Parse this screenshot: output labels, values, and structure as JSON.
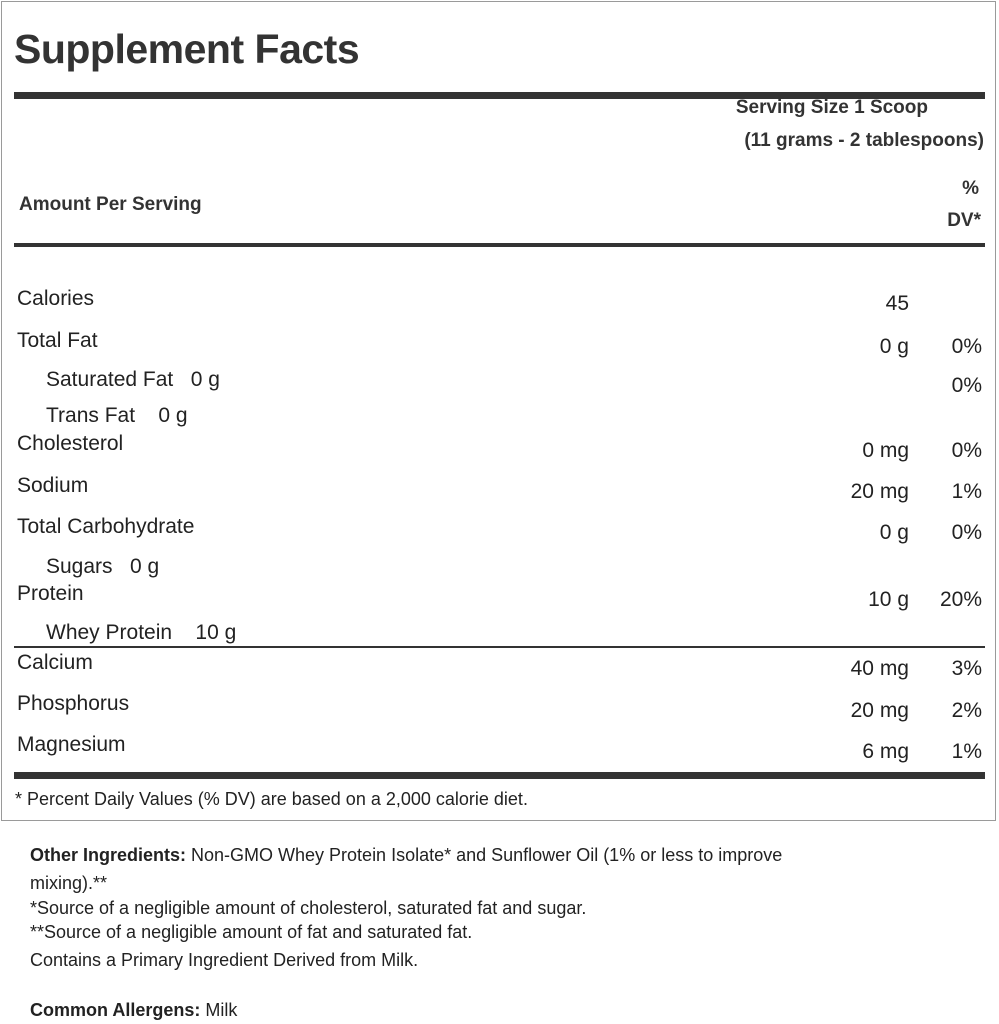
{
  "title": "Supplement Facts",
  "serving_size_line1": "Serving Size 1 Scoop",
  "serving_size_line2": "(11 grams - 2 tablespoons)",
  "amount_per_serving": "Amount Per Serving",
  "dv_header_line1": "%",
  "dv_header_line2": "DV*",
  "rows": [
    {
      "name": "Calories",
      "amount": "45",
      "dv": ""
    },
    {
      "name": "Total Fat",
      "amount": "0 g",
      "dv": "0%"
    },
    {
      "name": "Saturated Fat   0 g",
      "amount": "",
      "dv": "0%"
    },
    {
      "name": "Trans Fat    0 g",
      "amount": "",
      "dv": ""
    },
    {
      "name": "Cholesterol",
      "amount": "0 mg",
      "dv": "0%"
    },
    {
      "name": "Sodium",
      "amount": "20 mg",
      "dv": "1%"
    },
    {
      "name": "Total Carbohydrate",
      "amount": "0 g",
      "dv": "0%"
    },
    {
      "name": "Sugars   0 g",
      "amount": "",
      "dv": ""
    },
    {
      "name": "Protein",
      "amount": "10 g",
      "dv": "20%"
    },
    {
      "name": "Whey Protein    10 g",
      "amount": "",
      "dv": ""
    },
    {
      "name": "Calcium",
      "amount": "40 mg",
      "dv": "3%"
    },
    {
      "name": "Phosphorus",
      "amount": "20 mg",
      "dv": "2%"
    },
    {
      "name": "Magnesium",
      "amount": "6 mg",
      "dv": "1%"
    }
  ],
  "footnote": "* Percent Daily Values (% DV) are based on a 2,000 calorie diet.",
  "other_ingredients_label": "Other Ingredients:",
  "other_ingredients_text": " Non-GMO Whey Protein Isolate* and Sunflower Oil (1% or less to improve",
  "other_ingredients_cont": "mixing).**",
  "note1": "*Source of a negligible amount of cholesterol, saturated fat and sugar.",
  "note2": "**Source of a negligible amount of fat and saturated fat.",
  "note3": "Contains a Primary Ingredient Derived from Milk.",
  "allergens_label": "Common Allergens:",
  "allergens_text": " Milk"
}
